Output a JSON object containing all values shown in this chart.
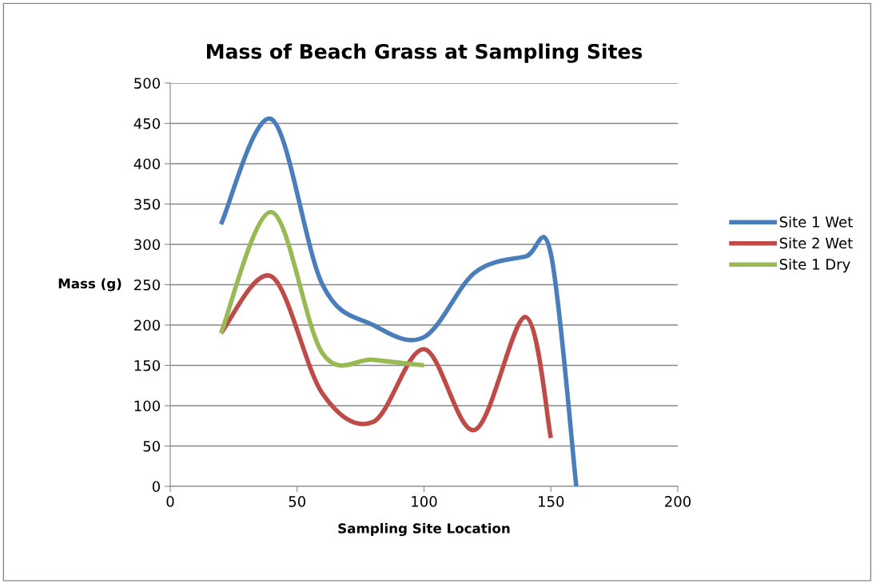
{
  "chart_data": {
    "type": "line",
    "title": "Mass of Beach Grass at Sampling Sites",
    "xlabel": "Sampling Site Location",
    "ylabel": "Mass (g)",
    "xlim": [
      0,
      200
    ],
    "xticks": [
      0,
      50,
      100,
      150,
      200
    ],
    "ylim": [
      0,
      500
    ],
    "yticks": [
      0,
      50,
      100,
      150,
      200,
      250,
      300,
      350,
      400,
      450,
      500
    ],
    "grid": "y",
    "legend": "right",
    "marker": "none",
    "line_style": "solid",
    "series": [
      {
        "name": "Site 1 Wet",
        "color": "#4a7ebb",
        "x": [
          20,
          40,
          60,
          80,
          100,
          120,
          140,
          150,
          160
        ],
        "values": [
          325,
          455,
          250,
          200,
          185,
          265,
          285,
          288,
          0
        ]
      },
      {
        "name": "Site 2 Wet",
        "color": "#be4b48",
        "x": [
          20,
          40,
          60,
          80,
          100,
          120,
          140,
          150
        ],
        "values": [
          190,
          260,
          115,
          80,
          170,
          70,
          210,
          60
        ]
      },
      {
        "name": "Site 1 Dry",
        "color": "#98b954",
        "x": [
          20,
          40,
          60,
          80,
          100
        ],
        "values": [
          190,
          340,
          165,
          157,
          150
        ]
      }
    ]
  }
}
